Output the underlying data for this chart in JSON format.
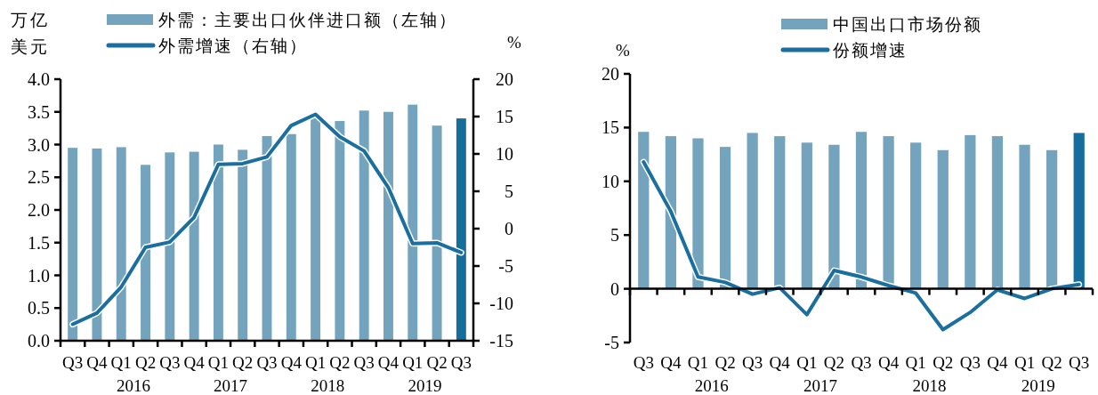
{
  "chart_data": [
    {
      "type": "bar",
      "ylabel": "万亿美元",
      "y2label": "%",
      "legend": "top",
      "categories": [
        "Q3",
        "Q4",
        "Q1",
        "Q2",
        "Q3",
        "Q4",
        "Q1",
        "Q2",
        "Q3",
        "Q4",
        "Q1",
        "Q2",
        "Q3",
        "Q4",
        "Q1",
        "Q2",
        "Q3"
      ],
      "series": [
        {
          "name": "外需：主要出口伙伴进口额（左轴）",
          "color": "#74a3bd",
          "colors": [
            "#74a3bd",
            "#74a3bd",
            "#74a3bd",
            "#74a3bd",
            "#74a3bd",
            "#74a3bd",
            "#74a3bd",
            "#74a3bd",
            "#74a3bd",
            "#74a3bd",
            "#74a3bd",
            "#74a3bd",
            "#74a3bd",
            "#74a3bd",
            "#74a3bd",
            "#74a3bd",
            "#156d9b"
          ],
          "values": [
            2.95,
            2.94,
            2.96,
            2.69,
            2.88,
            2.89,
            3.0,
            2.92,
            3.13,
            3.16,
            3.45,
            3.36,
            3.52,
            3.5,
            3.61,
            3.29,
            3.4
          ]
        },
        {
          "type": "line",
          "axis": "y2",
          "name": "外需增速（右轴）",
          "color": "#1a6f9f",
          "values": [
            -12.8,
            -11.3,
            -7.8,
            -2.5,
            -1.8,
            1.5,
            8.6,
            8.7,
            9.6,
            13.8,
            15.3,
            12.3,
            10.4,
            5.5,
            -2.0,
            -1.9,
            -3.2
          ]
        }
      ],
      "ylim": [
        0,
        4
      ],
      "yticks": [
        {
          "value": 0,
          "label": "0.0"
        },
        {
          "value": 0.5,
          "label": "0.5"
        },
        {
          "value": 1,
          "label": "1.0"
        },
        {
          "value": 1.5,
          "label": "1.5"
        },
        {
          "value": 2,
          "label": "2.0"
        },
        {
          "value": 2.5,
          "label": "2.5"
        },
        {
          "value": 3,
          "label": "3.0"
        },
        {
          "value": 3.5,
          "label": "3.5"
        },
        {
          "value": 4,
          "label": "4.0"
        }
      ],
      "y2lim": [
        -15,
        20
      ],
      "y2ticks": [
        -15,
        -10,
        -5,
        0,
        5,
        10,
        15,
        20
      ],
      "annotations": [
        "2016",
        "2017",
        "2018",
        "2019"
      ]
    },
    {
      "type": "bar",
      "ylabel": "%",
      "legend": "top",
      "categories": [
        "Q3",
        "Q4",
        "Q1",
        "Q2",
        "Q3",
        "Q4",
        "Q1",
        "Q2",
        "Q3",
        "Q4",
        "Q1",
        "Q2",
        "Q3",
        "Q4",
        "Q1",
        "Q2",
        "Q3"
      ],
      "series": [
        {
          "name": "中国出口市场份额",
          "color": "#74a3bd",
          "colors": [
            "#74a3bd",
            "#74a3bd",
            "#74a3bd",
            "#74a3bd",
            "#74a3bd",
            "#74a3bd",
            "#74a3bd",
            "#74a3bd",
            "#74a3bd",
            "#74a3bd",
            "#74a3bd",
            "#74a3bd",
            "#74a3bd",
            "#74a3bd",
            "#74a3bd",
            "#74a3bd",
            "#156d9b"
          ],
          "values": [
            14.6,
            14.2,
            14.0,
            13.2,
            14.5,
            14.2,
            13.6,
            13.4,
            14.6,
            14.2,
            13.6,
            12.9,
            14.3,
            14.2,
            13.4,
            12.9,
            14.5
          ]
        },
        {
          "type": "line",
          "name": "份额增速",
          "color": "#1a6f9f",
          "values": [
            11.8,
            7.2,
            1.1,
            0.6,
            -0.5,
            0.1,
            -2.4,
            1.7,
            1.1,
            0.3,
            -0.4,
            -3.8,
            -2.2,
            -0.1,
            -0.9,
            0.0,
            0.4
          ]
        }
      ],
      "ylim": [
        -5,
        20
      ],
      "yticks": [
        -5,
        0,
        5,
        10,
        15,
        20
      ],
      "annotations": [
        "2016",
        "2017",
        "2018",
        "2019"
      ]
    }
  ]
}
